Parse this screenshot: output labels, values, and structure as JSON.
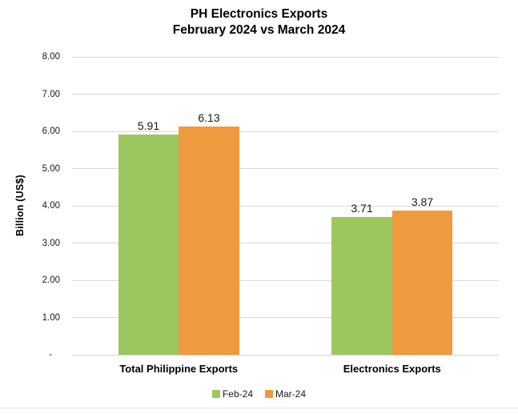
{
  "chart_data": {
    "type": "bar",
    "title": "PH Electronics Exports",
    "subtitle": "February 2024 vs March 2024",
    "xlabel": "",
    "ylabel": "Billion (US$)",
    "ylim": [
      0,
      8
    ],
    "grid": true,
    "legend_position": "bottom",
    "categories": [
      "Total Philippine Exports",
      "Electronics Exports"
    ],
    "series": [
      {
        "name": "Feb-24",
        "color": "#9CC75E",
        "values": [
          5.91,
          3.71
        ],
        "labels": [
          "5.91",
          "3.71"
        ]
      },
      {
        "name": "Mar-24",
        "color": "#EE9A3E",
        "values": [
          6.13,
          3.87
        ],
        "labels": [
          "6.13",
          "3.87"
        ]
      }
    ],
    "yticks": [
      {
        "value": 8,
        "label": "8.00"
      },
      {
        "value": 7,
        "label": "7.00"
      },
      {
        "value": 6,
        "label": "6.00"
      },
      {
        "value": 5,
        "label": "5.00"
      },
      {
        "value": 4,
        "label": "4.00"
      },
      {
        "value": 3,
        "label": "3.00"
      },
      {
        "value": 2,
        "label": "2.00"
      },
      {
        "value": 1,
        "label": "1.00"
      },
      {
        "value": 0,
        "label": "-"
      }
    ]
  },
  "colors": {
    "gridline": "#D9D9D9",
    "axis_line": "#D2D2D2",
    "text": "#1a1a1a",
    "footer_divider": "#EBEBEB"
  }
}
